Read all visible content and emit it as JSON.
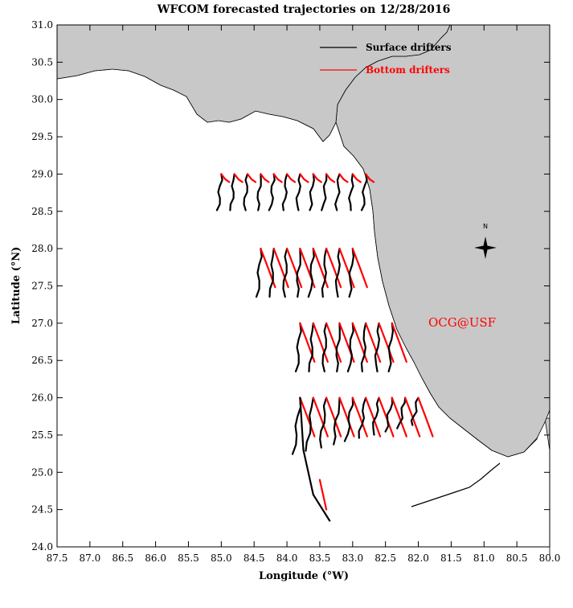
{
  "title": "WFCOM forecasted trajectories on 12/28/2016",
  "xlabel": "Longitude (°W)",
  "ylabel": "Latitude (°N)",
  "x_ticks": [
    "87.5",
    "87.0",
    "86.5",
    "86.0",
    "85.5",
    "85.0",
    "84.5",
    "84.0",
    "83.5",
    "83.0",
    "82.5",
    "82.0",
    "81.5",
    "81.0",
    "80.5",
    "80.0"
  ],
  "y_ticks": [
    "31.0",
    "30.5",
    "30.0",
    "29.5",
    "29.0",
    "28.5",
    "28.0",
    "27.5",
    "27.0",
    "26.5",
    "26.0",
    "25.5",
    "25.0",
    "24.5",
    "24.0"
  ],
  "legend": {
    "surface_label": "Surface drifters",
    "bottom_label": "Bottom drifters"
  },
  "compass_label": "N",
  "watermark": "OCG@USF",
  "colors": {
    "land": "#c8c8c8",
    "surface": "#000000",
    "bottom": "#ff0000",
    "watermark": "#ff0000"
  },
  "chart_data": {
    "type": "map",
    "xlim": [
      87.5,
      80.0
    ],
    "ylim": [
      24.0,
      31.0
    ],
    "x_units": "degrees W",
    "y_units": "degrees N",
    "release_rows": [
      {
        "lat": 29.0,
        "lons": [
          85.0,
          84.8,
          84.6,
          84.4,
          84.2,
          84.0,
          83.8,
          83.6,
          83.4,
          83.2,
          83.0,
          82.8
        ]
      },
      {
        "lat": 28.0,
        "lons": [
          84.4,
          84.2,
          84.0,
          83.8,
          83.6,
          83.4,
          83.2,
          83.0
        ]
      },
      {
        "lat": 27.0,
        "lons": [
          83.8,
          83.6,
          83.4,
          83.2,
          83.0,
          82.8,
          82.6,
          82.4
        ]
      },
      {
        "lat": 26.0,
        "lons": [
          83.8,
          83.6,
          83.4,
          83.2,
          83.0,
          82.8,
          82.6,
          82.4,
          82.2,
          82.0
        ]
      }
    ]
  }
}
